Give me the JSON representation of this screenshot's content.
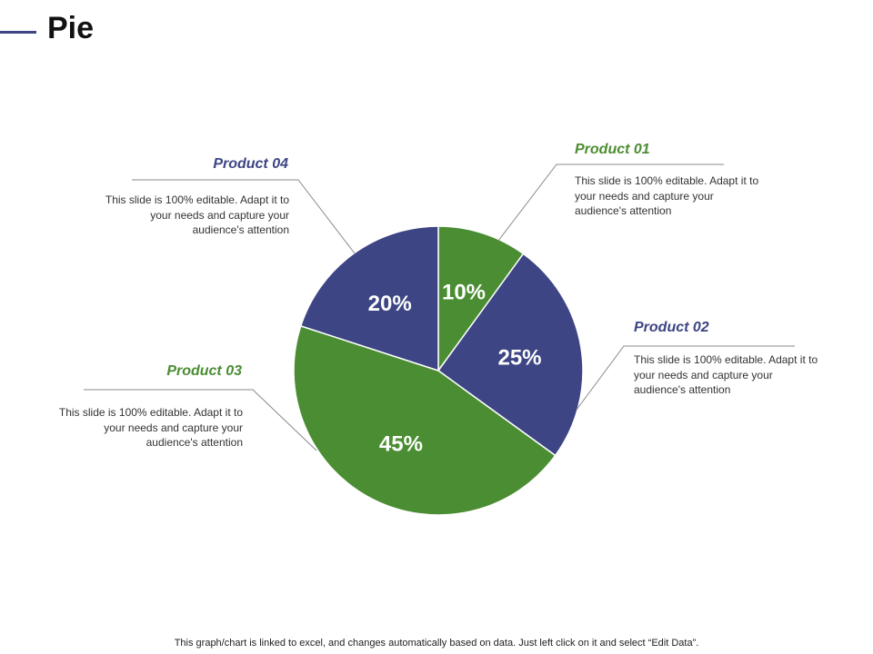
{
  "title": "Pie",
  "colors": {
    "green": "#4b8d32",
    "navy": "#3d4584"
  },
  "chart_data": {
    "type": "pie",
    "slices": [
      {
        "label": "Product 01",
        "value": 10,
        "display": "10%",
        "color": "#4b8d32"
      },
      {
        "label": "Product 02",
        "value": 25,
        "display": "25%",
        "color": "#3d4584"
      },
      {
        "label": "Product 03",
        "value": 45,
        "display": "45%",
        "color": "#4b8d32"
      },
      {
        "label": "Product 04",
        "value": 20,
        "display": "20%",
        "color": "#3d4584"
      }
    ],
    "start_angle_deg": 0,
    "direction": "clockwise"
  },
  "callouts": {
    "product01": {
      "title": "Product 01",
      "text": "This slide is 100% editable. Adapt it to your needs and capture your audience's attention"
    },
    "product02": {
      "title": "Product 02",
      "text": "This slide is 100% editable. Adapt it to your needs and capture your audience's attention"
    },
    "product03": {
      "title": "Product 03",
      "text": "This slide is 100% editable. Adapt it to your needs and capture your audience's attention"
    },
    "product04": {
      "title": "Product 04",
      "text": "This slide is 100% editable. Adapt it to your needs and capture your audience's attention"
    }
  },
  "footer": "This graph/chart is linked to excel, and changes automatically based on data. Just left click on it and select “Edit Data”."
}
